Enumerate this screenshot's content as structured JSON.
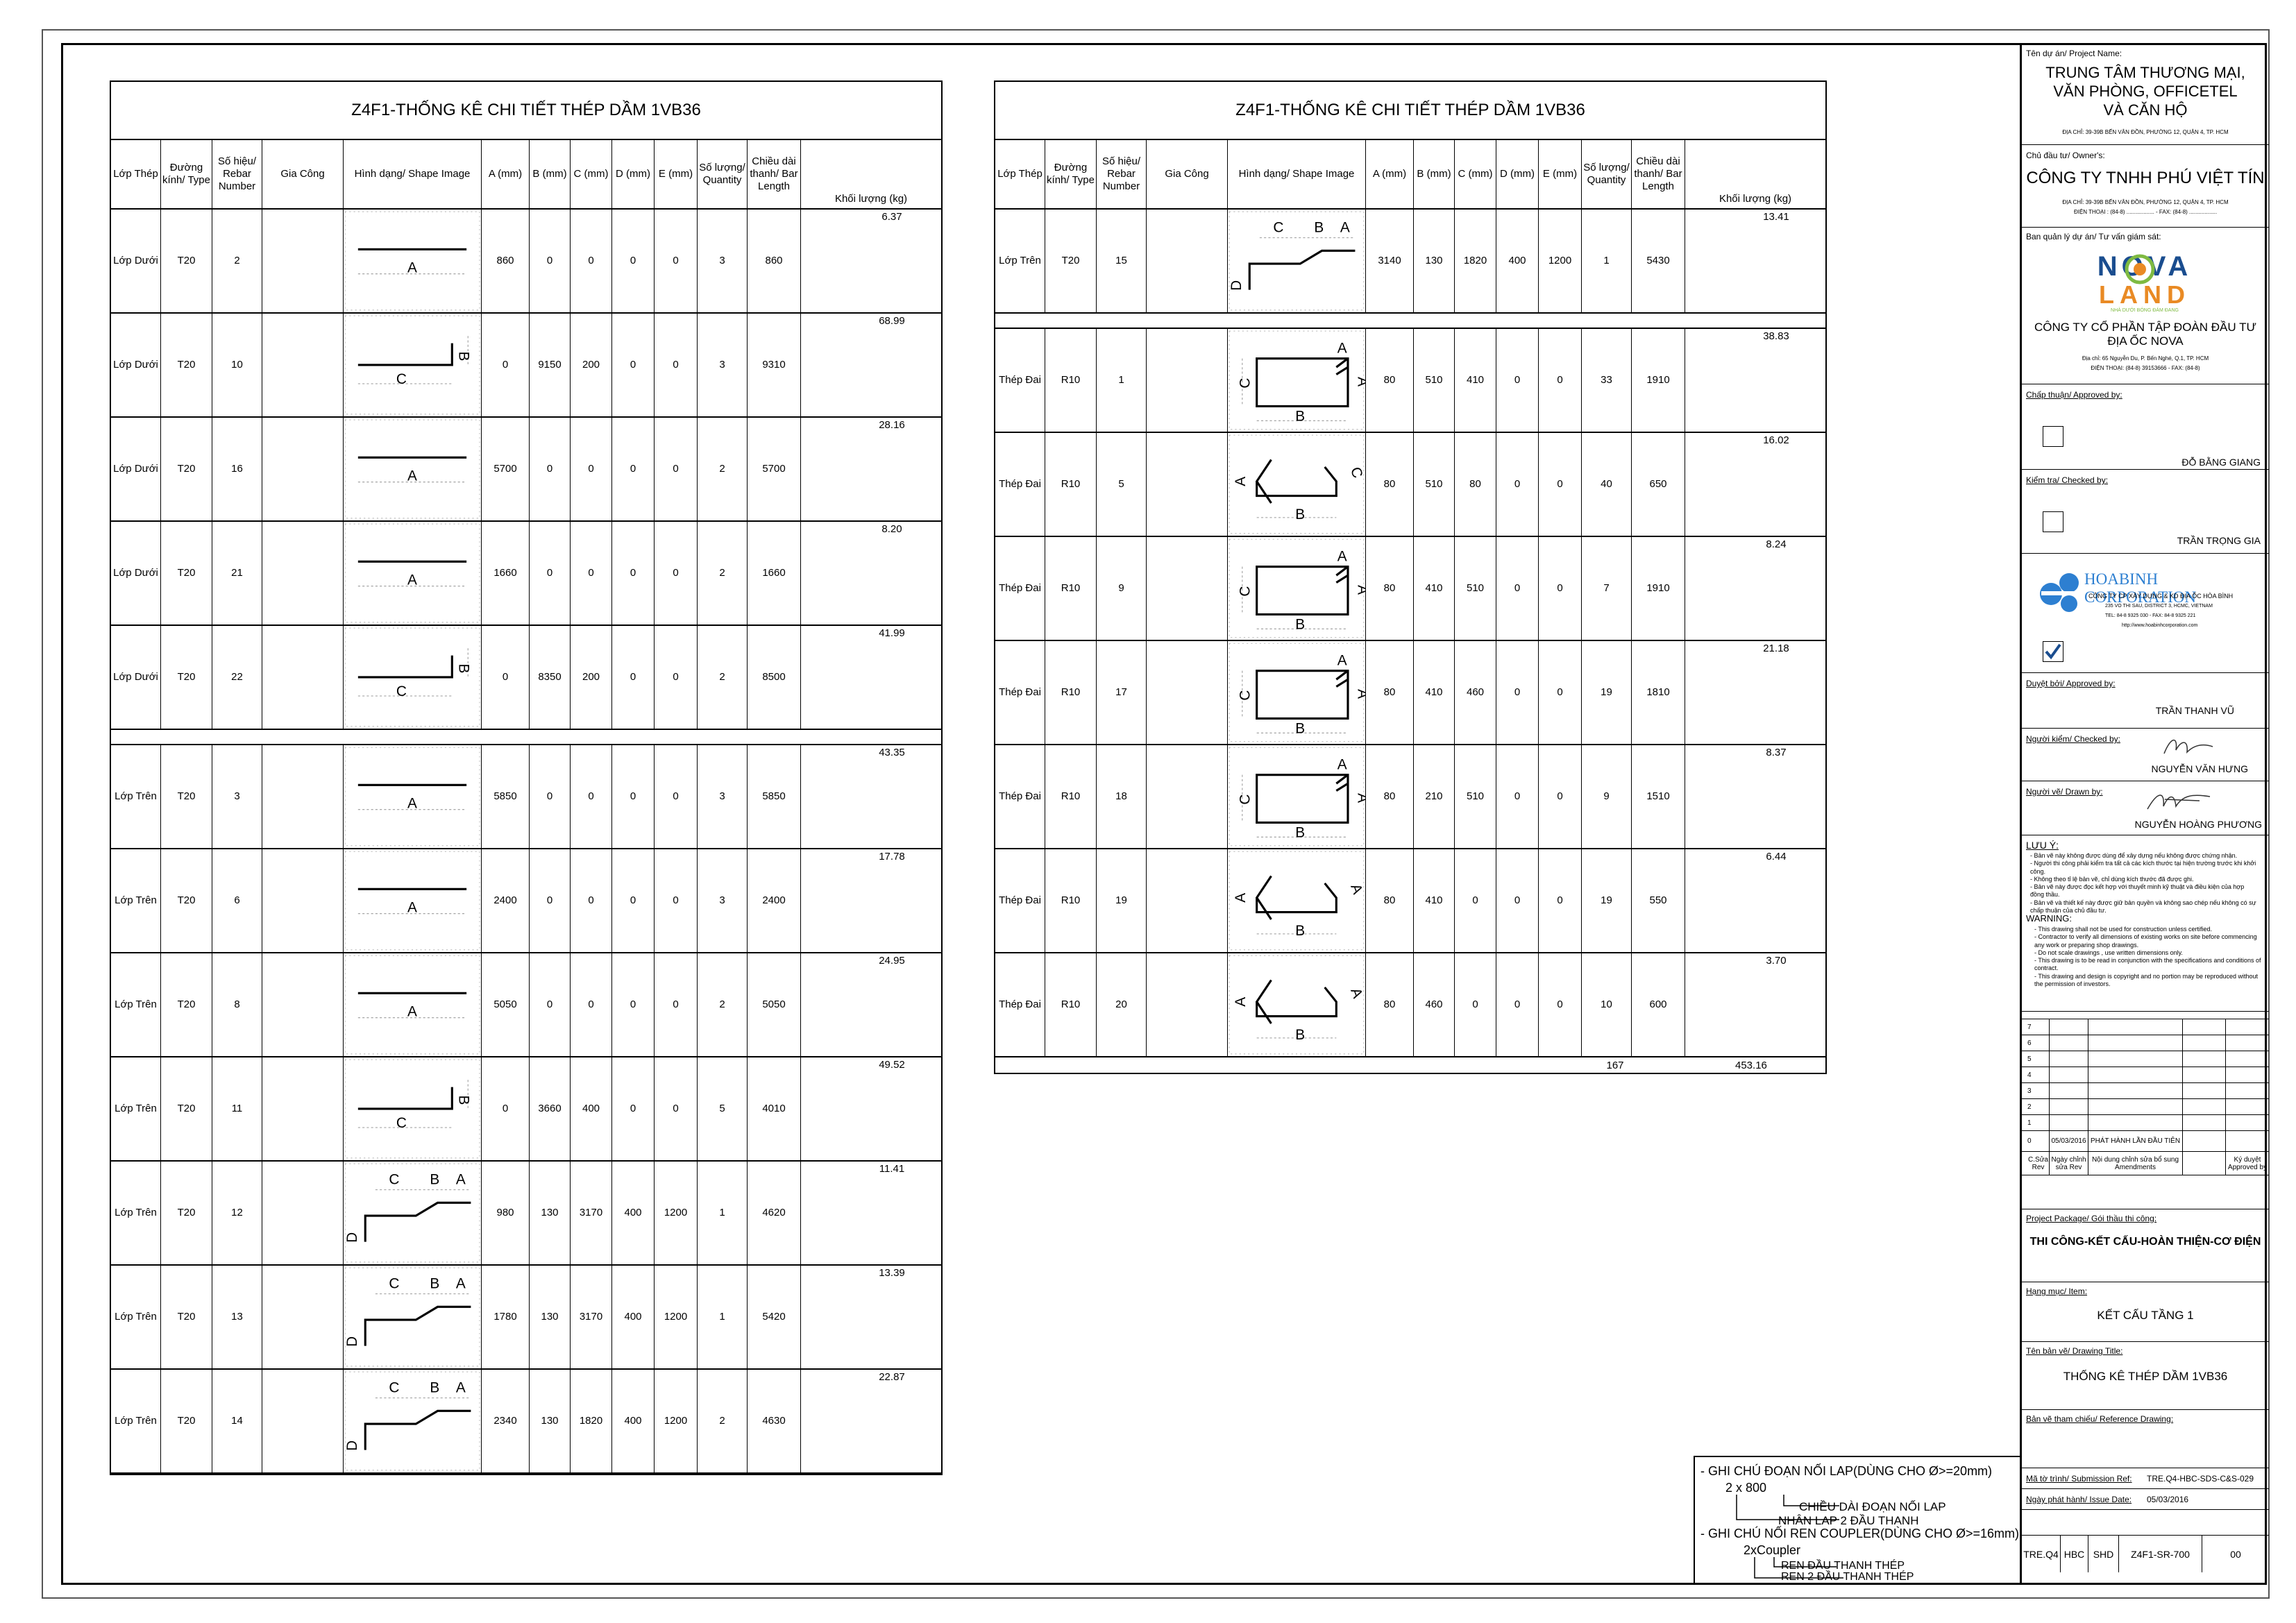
{
  "header_cols": [
    "Lớp Thép",
    "Đường kính/ Type",
    "Số hiệu/ Rebar Number",
    "Gia Công",
    "Hình dạng/ Shape Image",
    "A (mm)",
    "B (mm)",
    "C (mm)",
    "D (mm)",
    "E (mm)",
    "Số lượng/ Quantity",
    "Chiều dài thanh/ Bar Length",
    "Khối lượng (kg)"
  ],
  "left_table": {
    "title": "Z4F1-THỐNG KÊ CHI TIẾT THÉP DẦM 1VB36",
    "rows": [
      {
        "layer": "Lớp Dưới",
        "type": "T20",
        "num": "2",
        "shape": "straight",
        "A": "860",
        "B": "0",
        "C": "0",
        "D": "0",
        "E": "0",
        "qty": "3",
        "len": "860",
        "kg": "6.37"
      },
      {
        "layer": "Lớp Dưới",
        "type": "T20",
        "num": "10",
        "shape": "hookCB",
        "A": "0",
        "B": "9150",
        "C": "200",
        "D": "0",
        "E": "0",
        "qty": "3",
        "len": "9310",
        "kg": "68.99"
      },
      {
        "layer": "Lớp Dưới",
        "type": "T20",
        "num": "16",
        "shape": "straight",
        "A": "5700",
        "B": "0",
        "C": "0",
        "D": "0",
        "E": "0",
        "qty": "2",
        "len": "5700",
        "kg": "28.16"
      },
      {
        "layer": "Lớp Dưới",
        "type": "T20",
        "num": "21",
        "shape": "straight",
        "A": "1660",
        "B": "0",
        "C": "0",
        "D": "0",
        "E": "0",
        "qty": "2",
        "len": "1660",
        "kg": "8.20"
      },
      {
        "layer": "Lớp Dưới",
        "type": "T20",
        "num": "22",
        "shape": "hookCB",
        "A": "0",
        "B": "8350",
        "C": "200",
        "D": "0",
        "E": "0",
        "qty": "2",
        "len": "8500",
        "kg": "41.99",
        "gap_after": true
      },
      {
        "layer": "Lớp Trên",
        "type": "T20",
        "num": "3",
        "shape": "straight",
        "A": "5850",
        "B": "0",
        "C": "0",
        "D": "0",
        "E": "0",
        "qty": "3",
        "len": "5850",
        "kg": "43.35"
      },
      {
        "layer": "Lớp Trên",
        "type": "T20",
        "num": "6",
        "shape": "straight",
        "A": "2400",
        "B": "0",
        "C": "0",
        "D": "0",
        "E": "0",
        "qty": "3",
        "len": "2400",
        "kg": "17.78"
      },
      {
        "layer": "Lớp Trên",
        "type": "T20",
        "num": "8",
        "shape": "straight",
        "A": "5050",
        "B": "0",
        "C": "0",
        "D": "0",
        "E": "0",
        "qty": "2",
        "len": "5050",
        "kg": "24.95"
      },
      {
        "layer": "Lớp Trên",
        "type": "T20",
        "num": "11",
        "shape": "hookCB",
        "A": "0",
        "B": "3660",
        "C": "400",
        "D": "0",
        "E": "0",
        "qty": "5",
        "len": "4010",
        "kg": "49.52"
      },
      {
        "layer": "Lớp Trên",
        "type": "T20",
        "num": "12",
        "shape": "crank",
        "A": "980",
        "B": "130",
        "C": "3170",
        "D": "400",
        "E": "1200",
        "qty": "1",
        "len": "4620",
        "kg": "11.41"
      },
      {
        "layer": "Lớp Trên",
        "type": "T20",
        "num": "13",
        "shape": "crank",
        "A": "1780",
        "B": "130",
        "C": "3170",
        "D": "400",
        "E": "1200",
        "qty": "1",
        "len": "5420",
        "kg": "13.39"
      },
      {
        "layer": "Lớp Trên",
        "type": "T20",
        "num": "14",
        "shape": "crank",
        "A": "2340",
        "B": "130",
        "C": "1820",
        "D": "400",
        "E": "1200",
        "qty": "2",
        "len": "4630",
        "kg": "22.87"
      }
    ]
  },
  "right_table": {
    "title": "Z4F1-THỐNG KÊ CHI TIẾT THÉP DẦM 1VB36",
    "rows": [
      {
        "layer": "Lớp Trên",
        "type": "T20",
        "num": "15",
        "shape": "crank",
        "A": "3140",
        "B": "130",
        "C": "1820",
        "D": "400",
        "E": "1200",
        "qty": "1",
        "len": "5430",
        "kg": "13.41",
        "gap_after": true
      },
      {
        "layer": "Thép Đai",
        "type": "R10",
        "num": "1",
        "shape": "stirrup",
        "A": "80",
        "B": "510",
        "C": "410",
        "D": "0",
        "E": "0",
        "qty": "33",
        "len": "1910",
        "kg": "38.83"
      },
      {
        "layer": "Thép Đai",
        "type": "R10",
        "num": "5",
        "shape": "tieC",
        "A": "80",
        "B": "510",
        "C": "80",
        "D": "0",
        "E": "0",
        "qty": "40",
        "len": "650",
        "kg": "16.02"
      },
      {
        "layer": "Thép Đai",
        "type": "R10",
        "num": "9",
        "shape": "stirrup",
        "A": "80",
        "B": "410",
        "C": "510",
        "D": "0",
        "E": "0",
        "qty": "7",
        "len": "1910",
        "kg": "8.24"
      },
      {
        "layer": "Thép Đai",
        "type": "R10",
        "num": "17",
        "shape": "stirrup",
        "A": "80",
        "B": "410",
        "C": "460",
        "D": "0",
        "E": "0",
        "qty": "19",
        "len": "1810",
        "kg": "21.18"
      },
      {
        "layer": "Thép Đai",
        "type": "R10",
        "num": "18",
        "shape": "stirrup",
        "A": "80",
        "B": "210",
        "C": "510",
        "D": "0",
        "E": "0",
        "qty": "9",
        "len": "1510",
        "kg": "8.37"
      },
      {
        "layer": "Thép Đai",
        "type": "R10",
        "num": "19",
        "shape": "tieA",
        "A": "80",
        "B": "410",
        "C": "0",
        "D": "0",
        "E": "0",
        "qty": "19",
        "len": "550",
        "kg": "6.44"
      },
      {
        "layer": "Thép Đai",
        "type": "R10",
        "num": "20",
        "shape": "tieA",
        "A": "80",
        "B": "460",
        "C": "0",
        "D": "0",
        "E": "0",
        "qty": "10",
        "len": "600",
        "kg": "3.70"
      }
    ],
    "total_qty": "167",
    "total_kg": "453.16"
  },
  "title_block": {
    "project_label": "Tên dự án/ Project Name:",
    "project_name_1": "TRUNG TÂM THƯƠNG MẠI,",
    "project_name_2": "VĂN PHÒNG, OFFICETEL",
    "project_name_3": "VÀ CĂN HỘ",
    "project_addr": "ĐỊA CHỈ: 39-39B BẾN VÂN ĐỒN, PHƯỜNG 12, QUẬN 4, TP. HCM",
    "owner_label": "Chủ đầu tư/ Owner's:",
    "owner_name": "CÔNG TY TNHH PHÚ VIỆT TÍN",
    "owner_addr": "ĐỊA CHỈ: 39-39B BẾN VÂN ĐỒN, PHƯỜNG 12, QUẬN 4, TP. HCM",
    "owner_phone": "ĐIỆN THOẠI : (84-8) .................. - FAX: (84-8) ..................",
    "pm_label": "Ban quản lý dự án/ Tư vấn giám sát:",
    "nova_logo_1": "NOVA",
    "nova_logo_2": "LAND",
    "nova_slogan": "NHÀ DƯỚI BÓNG ĐÁM ĐANG",
    "pm_name_1": "CÔNG TY CỔ PHẦN TẬP ĐOÀN ĐẦU TƯ",
    "pm_name_2": "ĐỊA ỐC NOVA",
    "pm_addr": "Địa chỉ: 65 Nguyễn Du, P. Bến Nghé, Q.1, TP. HCM",
    "pm_phone": "ĐIỆN THOẠI: (84-8) 39153666 - FAX: (84-8)",
    "approved_label": "Chấp thuận/ Approved by:",
    "approved_name": "ĐỖ BẰNG GIANG",
    "checked_label": "Kiểm tra/ Checked by:",
    "checked_name": "TRẦN TRỌNG GIA",
    "hb_name": "HOABINH CORPORATION",
    "hb_line1": "CÔNG TY CP XÂY DỰNG & KD ĐỊA ỐC HÒA BÌNH",
    "hb_line2": "235 VO THI SAU, DISTRICT 3, HCMC, VIETNAM",
    "hb_line3": "TEL: 84-8 9325 030 - FAX: 84-8 9325 221",
    "hb_line4": "http://www.hoabinhcorporation.com",
    "reviewed_label": "Duyệt bởi/ Approved by:",
    "reviewed_name": "TRẦN THANH VŨ",
    "checker_label": "Người kiểm/ Checked by:",
    "checker_name": "NGUYỄN VĂN HƯNG",
    "drawer_label": "Người vẽ/ Drawn by:",
    "drawer_name": "NGUYỄN HOÀNG PHƯƠNG",
    "luu_y_label": "LƯU Ý:",
    "luu_y_text": "- Bản vẽ này không được dùng để xây dựng nếu không được chứng nhận.\n- Người thi công phải kiểm tra tất cả các kích thước tại hiện trường trước khi khởi công.\n- Không theo tỉ lệ bản vẽ, chỉ dùng kích thước đã được ghi.\n- Bản vẽ này được đọc kết hợp với thuyết minh kỹ thuật và điều kiện của hợp đồng thầu.\n- Bản vẽ và thiết kế này được giữ bản quyền và không sao chép nếu không có sự chấp thuận của chủ đầu tư.",
    "warning_label": "WARNING:",
    "warning_text": "- This drawing shall not be used for construction unless certified.\n- Contractor to verify all dimensions of existing works on site before commencing any work or preparing shop drawings.\n- Do not scale drawings , use written dimensions only.\n- This drawing is to be read in conjunction with the specifications and conditions of contract.\n- This drawing and design is copyright and no portion may be reproduced without the permission of investors.",
    "revisions": [
      "7",
      "6",
      "5",
      "4",
      "3",
      "2",
      "1"
    ],
    "rev0_num": "0",
    "rev0_date": "05/03/2016",
    "rev0_desc": "PHÁT HÀNH LẦN ĐẦU TIÊN",
    "rev_h1": "C.Sửa Rev",
    "rev_h2": "Ngày chỉnh sửa Rev",
    "rev_h3": "Nội dung chỉnh sửa bổ sung Amendments",
    "rev_h4": "",
    "rev_h5": "Ký duyệt Approved by",
    "package_label": "Project Package/ Gói thầu thi công:",
    "package_name": "THI CÔNG-KẾT CẤU-HOÀN THIỆN-CƠ ĐIỆN",
    "item_label": "Hạng mục/ Item:",
    "item_name": "KẾT CẤU TẦNG 1",
    "drawing_title_label": "Tên bản vẽ/ Drawing Title:",
    "drawing_title": "THỐNG KÊ  THÉP DẦM 1VB36",
    "reference_label": "Bản vẽ tham chiếu/ Reference Drawing:",
    "submission_label": "Mã tờ trình/ Submission Ref:",
    "submission_value": "TRE.Q4-HBC-SDS-C&S-029",
    "issue_label": "Ngày phát hành/ Issue Date:",
    "issue_value": "05/03/2016",
    "code": [
      "TRE.Q4",
      "HBC",
      "SHD",
      "Z4F1-SR-700",
      "00"
    ]
  },
  "notes": {
    "lap_title": "- GHI CHÚ ĐOẠN NỐI LAP(DÙNG CHO Ø>=20mm)",
    "lap_formula": "2   x  800",
    "lap_note1": "CHIỀU DÀI ĐOẠN NỐI LAP",
    "lap_note2": "NHÂN LAP 2 ĐẦU THANH",
    "coupler_title": "- GHI CHÚ NỐI REN COUPLER(DÙNG CHO Ø>=16mm)",
    "coupler_formula": "2xCoupler",
    "coupler_note1": "REN ĐẦU THANH THÉP",
    "coupler_note2": "REN 2 ĐẦU THANH THÉP"
  },
  "shape_letters": {
    "a": "A",
    "b": "B",
    "c": "C",
    "d": "D"
  },
  "colors": {
    "nova_green": "#7fba42",
    "nova_orange": "#e98a24",
    "nova_blue": "#1a4d8f",
    "hb_blue": "#2d7fd1"
  }
}
